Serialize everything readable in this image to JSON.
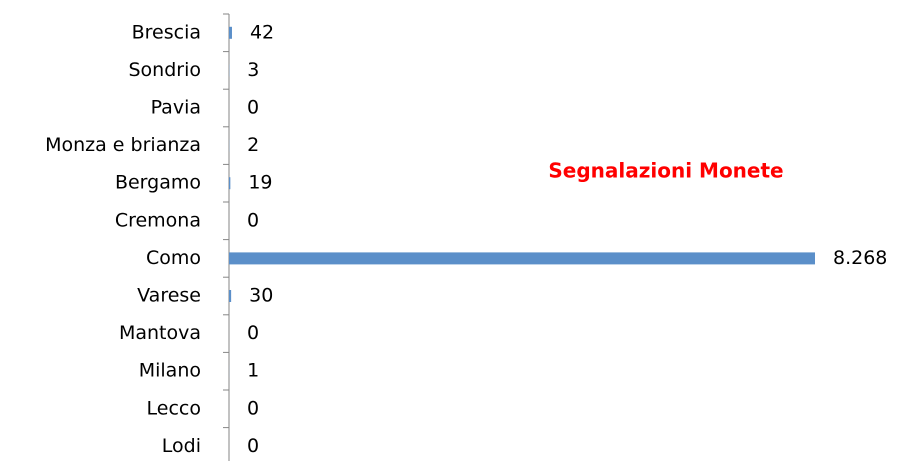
{
  "chart_data": {
    "type": "hbar",
    "title": "Segnalazioni Monete",
    "categories": [
      "Brescia",
      "Sondrio",
      "Pavia",
      "Monza e brianza",
      "Bergamo",
      "Cremona",
      "Como",
      "Varese",
      "Mantova",
      "Milano",
      "Lecco",
      "Lodi"
    ],
    "values": [
      42,
      3,
      0,
      2,
      19,
      0,
      8268,
      30,
      0,
      1,
      0,
      0
    ],
    "value_labels": [
      "42",
      "3",
      "0",
      "2",
      "19",
      "0",
      "8.268",
      "30",
      "0",
      "1",
      "0",
      "0"
    ],
    "color": "#5b8fc9",
    "title_color": "#ff0000",
    "xlim": [
      0,
      8268
    ]
  }
}
